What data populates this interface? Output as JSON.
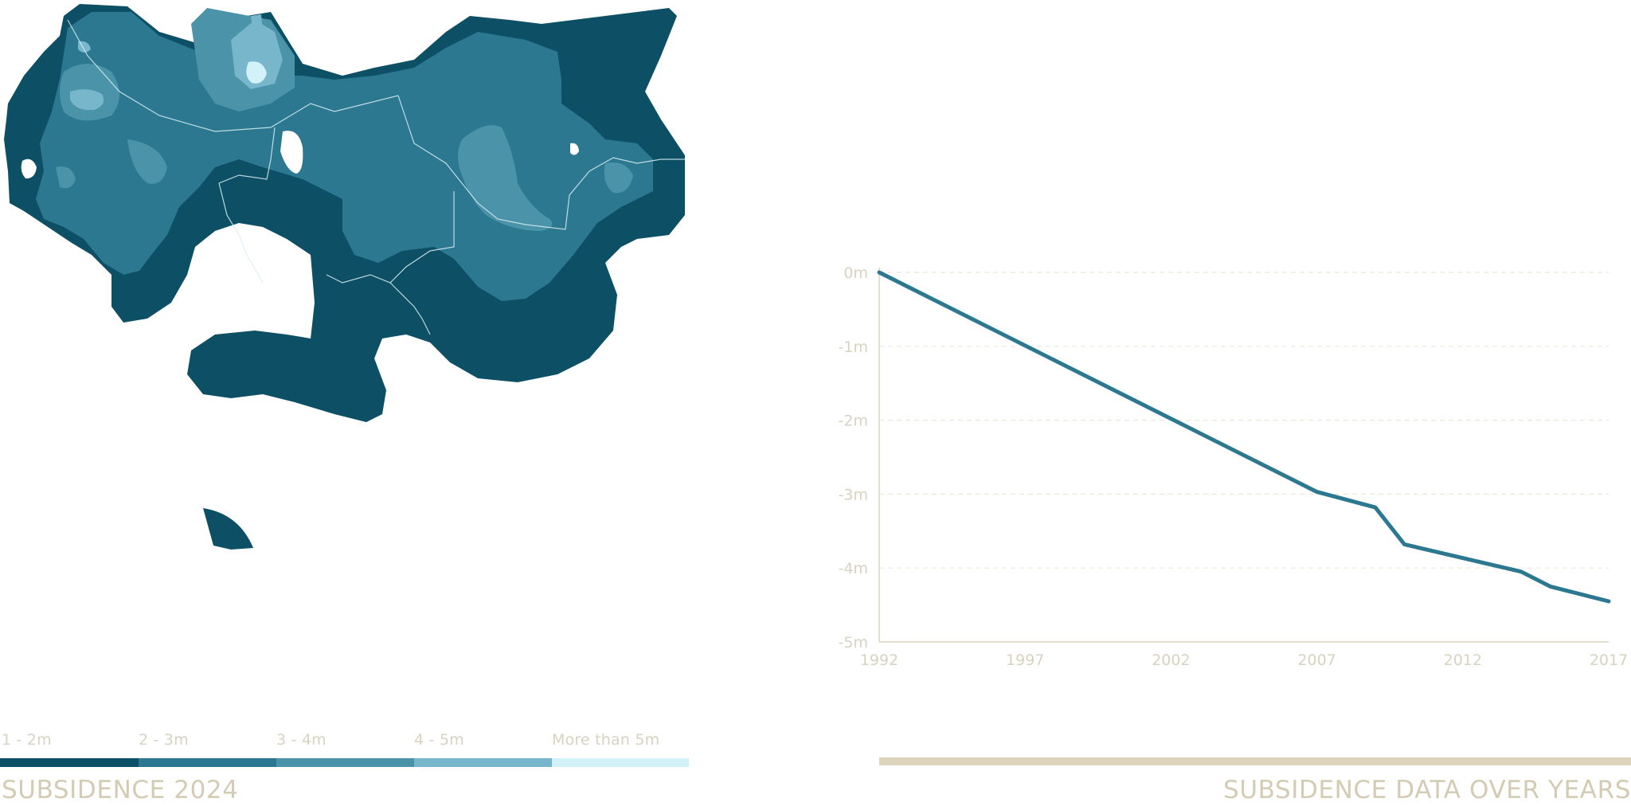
{
  "colors": {
    "level_1": "#0d4f64",
    "level_2": "#2b7890",
    "level_3": "#4a93a8",
    "level_4": "#78b6cb",
    "level_5": "#d2f1f8",
    "line": "#2b7890",
    "axis": "#e4dece",
    "grid": "#ebe7dc",
    "text": "#d8d2c0"
  },
  "map": {
    "title": "SUBSIDENCE 2024",
    "legend": [
      {
        "label": "1 - 2m",
        "color": "#0d4f64"
      },
      {
        "label": "2 - 3m",
        "color": "#2b7890"
      },
      {
        "label": "3 - 4m",
        "color": "#4a93a8"
      },
      {
        "label": "4 - 5m",
        "color": "#78b6cb"
      },
      {
        "label": "More than 5m",
        "color": "#d2f1f8"
      }
    ]
  },
  "chart_data": {
    "type": "line",
    "title": "SUBSIDENCE DATA OVER YEARS",
    "xlabel": "",
    "ylabel": "",
    "x_ticks": [
      1992,
      1997,
      2002,
      2007,
      2012,
      2017
    ],
    "y_ticks": [
      "0m",
      "-1m",
      "-2m",
      "-3m",
      "-4m",
      "-5m"
    ],
    "xlim": [
      1992,
      2017
    ],
    "ylim": [
      -5,
      0
    ],
    "grid": true,
    "series": [
      {
        "x": [
          1992,
          2007,
          2009,
          2010,
          2014,
          2015,
          2017
        ],
        "y": [
          0,
          -2.97,
          -3.18,
          -3.68,
          -4.05,
          -4.25,
          -4.45
        ]
      }
    ]
  }
}
